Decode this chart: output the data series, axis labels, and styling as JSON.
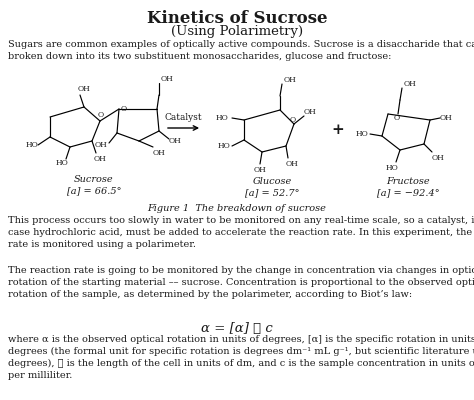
{
  "title": "Kinetics of Sucrose",
  "subtitle": "(Using Polarimetry)",
  "para1": "Sugars are common examples of optically active compounds. Sucrose is a disaccharide that can be\nbroken down into its two substituent monosaccharides, glucose and fructose:",
  "figure_caption": "Figure 1  The breakdown of sucrose",
  "sucrose_label": "Sucrose",
  "sucrose_rotation": "[a] = 66.5°",
  "glucose_label": "Glucose",
  "glucose_rotation": "[a] = 52.7°",
  "fructose_label": "Fructose",
  "fructose_rotation": "[a] = −92.4°",
  "catalyst_label": "Catalyst",
  "para2": "This process occurs too slowly in water to be monitored on any real-time scale, so a catalyst, in this\ncase hydrochloric acid, must be added to accelerate the reaction rate. In this experiment, the reaction\nrate is monitored using a polarimeter.",
  "para3": "The reaction rate is going to be monitored by the change in concentration via changes in optical\nrotation of the starting material –– sucrose. Concentration is proportional to the observed optical\nrotation of the sample, as determined by the polarimeter, according to Biot’s law:",
  "biot_law": "α = [α] ℓ c",
  "para4": "where α is the observed optical rotation in units of degrees, [α] is the specific rotation in units of\ndegrees (the formal unit for specific rotation is degrees dm⁻¹ mL g⁻¹, but scientific literature uses just\ndegrees), ℓ is the length of the cell in units of dm, and c is the sample concentration in units of grams\nper milliliter.",
  "bg_color": "#ffffff",
  "text_color": "#1a1a1a",
  "font_family": "DejaVu Serif"
}
